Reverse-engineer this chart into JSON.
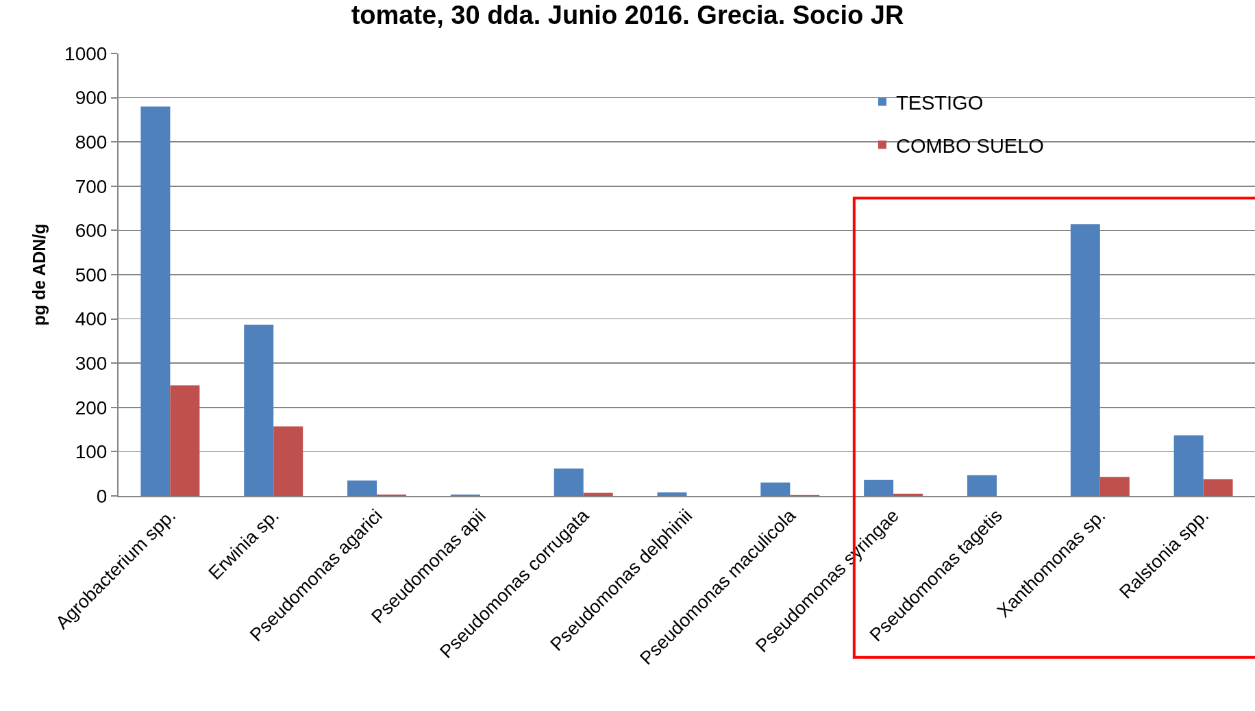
{
  "chart_data": {
    "type": "bar",
    "title": "tomate, 30 dda. Junio 2016. Grecia. Socio JR",
    "ylabel": "pg de ADN/g",
    "categories": [
      "Agrobacterium spp.",
      "Erwinia sp.",
      "Pseudomonas agarici",
      "Pseudomonas apii",
      "Pseudomonas corrugata",
      "Pseudomonas delphinii",
      "Pseudomonas maculicola",
      "Pseudomonas syringae",
      "Pseudomonas tagetis",
      "Xanthomonas sp.",
      "Ralstonia spp."
    ],
    "series": [
      {
        "name": "TESTIGO",
        "color": "#4f81bd",
        "values": [
          880,
          387,
          35,
          3,
          62,
          8,
          30,
          36,
          47,
          614,
          137
        ]
      },
      {
        "name": "COMBO SUELO",
        "color": "#c0504d",
        "values": [
          250,
          157,
          3,
          0,
          7,
          0,
          2,
          5,
          0,
          43,
          38
        ]
      }
    ],
    "ylim": [
      0,
      1000
    ],
    "yticks": [
      0,
      100,
      200,
      300,
      400,
      500,
      600,
      700,
      800,
      900,
      1000
    ],
    "grid": "y",
    "legend": "top right"
  }
}
